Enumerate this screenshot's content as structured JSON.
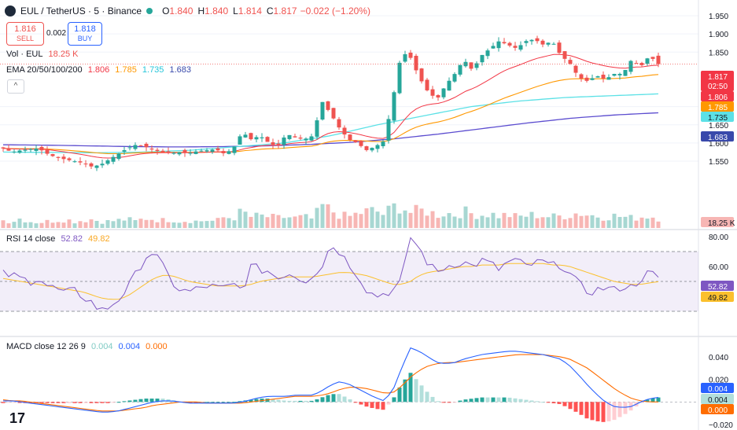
{
  "header": {
    "symbol": "EUL / TetherUS · 5 · Binance",
    "o_label": "O",
    "o": "1.840",
    "h_label": "H",
    "h": "1.840",
    "l_label": "L",
    "l": "1.814",
    "c_label": "C",
    "c": "1.817",
    "change": "−0.022 (−1.20%)"
  },
  "trade": {
    "sell_price": "1.816",
    "sell_label": "SELL",
    "spread": "0.002",
    "buy_price": "1.818",
    "buy_label": "BUY"
  },
  "volume_legend": {
    "label": "Vol · EUL",
    "value": "18.25 K"
  },
  "ema_legend": {
    "label": "EMA 20/50/100/200",
    "v20": "1.806",
    "v50": "1.785",
    "v100": "1.735",
    "v200": "1.683"
  },
  "rsi_legend": {
    "label": "RSI 14 close",
    "v1": "52.82",
    "v2": "49.82"
  },
  "macd_legend": {
    "label": "MACD close 12 26 9",
    "hist": "0.004",
    "macd": "0.004",
    "signal": "0.000"
  },
  "price_axis": {
    "ticks": [
      "1.950",
      "1.900",
      "1.850",
      "1.700",
      "1.650",
      "1.600",
      "1.550"
    ]
  },
  "rsi_axis": {
    "ticks": [
      "80.00",
      "60.00",
      "40.00"
    ]
  },
  "macd_axis": {
    "ticks": [
      "0.040",
      "0.020",
      "−0.020"
    ]
  },
  "badges": {
    "price": "1.817",
    "countdown": "02:50",
    "ema20": "1.806",
    "ema50": "1.785",
    "ema100": "1.735",
    "ema200": "1.683",
    "volume": "18.25 K",
    "rsi": "52.82",
    "rsi_ma": "49.82",
    "macd_hist": "0.004",
    "macd": "0.004",
    "signal": "0.000"
  },
  "colors": {
    "up": "#26a69a",
    "down": "#ef5350",
    "ema20": "#f23645",
    "ema50": "#ff9800",
    "ema100": "#5ce1e6",
    "ema200": "#5b4ccf",
    "rsi": "#7e57c2",
    "rsi_ma": "#fbc02d",
    "macd": "#2962ff",
    "signal": "#ff6d00"
  },
  "chart_data": [
    {
      "type": "candlestick",
      "title": "EUL / TetherUS · 5 · Binance",
      "ylim": [
        1.52,
        1.96
      ],
      "ohlc_anchors": [
        {
          "o": 1.58,
          "c": 1.585
        },
        {
          "o": 1.585,
          "c": 1.575
        },
        {
          "o": 1.578,
          "c": 1.58
        },
        {
          "o": 1.58,
          "c": 1.583
        },
        {
          "o": 1.583,
          "c": 1.585
        },
        {
          "o": 1.585,
          "c": 1.57
        },
        {
          "o": 1.57,
          "c": 1.56
        },
        {
          "o": 1.56,
          "c": 1.555
        },
        {
          "o": 1.555,
          "c": 1.55
        },
        {
          "o": 1.55,
          "c": 1.545
        },
        {
          "o": 1.545,
          "c": 1.535
        },
        {
          "o": 1.535,
          "c": 1.54
        },
        {
          "o": 1.54,
          "c": 1.555
        },
        {
          "o": 1.555,
          "c": 1.57
        },
        {
          "o": 1.57,
          "c": 1.585
        },
        {
          "o": 1.585,
          "c": 1.595
        },
        {
          "o": 1.595,
          "c": 1.59
        },
        {
          "o": 1.59,
          "c": 1.58
        },
        {
          "o": 1.58,
          "c": 1.575
        },
        {
          "o": 1.575,
          "c": 1.572
        },
        {
          "o": 1.572,
          "c": 1.575
        },
        {
          "o": 1.575,
          "c": 1.572
        },
        {
          "o": 1.572,
          "c": 1.578
        },
        {
          "o": 1.578,
          "c": 1.58
        },
        {
          "o": 1.58,
          "c": 1.583
        },
        {
          "o": 1.583,
          "c": 1.57
        },
        {
          "o": 1.57,
          "c": 1.585
        },
        {
          "o": 1.585,
          "c": 1.63
        },
        {
          "o": 1.63,
          "c": 1.61
        },
        {
          "o": 1.61,
          "c": 1.62
        },
        {
          "o": 1.62,
          "c": 1.6
        },
        {
          "o": 1.6,
          "c": 1.59
        },
        {
          "o": 1.59,
          "c": 1.625
        },
        {
          "o": 1.625,
          "c": 1.615
        },
        {
          "o": 1.615,
          "c": 1.61
        },
        {
          "o": 1.61,
          "c": 1.62
        },
        {
          "o": 1.62,
          "c": 1.715
        },
        {
          "o": 1.715,
          "c": 1.68
        },
        {
          "o": 1.68,
          "c": 1.64
        },
        {
          "o": 1.64,
          "c": 1.61
        },
        {
          "o": 1.61,
          "c": 1.6
        },
        {
          "o": 1.6,
          "c": 1.58
        },
        {
          "o": 1.58,
          "c": 1.59
        },
        {
          "o": 1.59,
          "c": 1.605
        },
        {
          "o": 1.605,
          "c": 1.72
        },
        {
          "o": 1.72,
          "c": 1.85
        },
        {
          "o": 1.85,
          "c": 1.835
        },
        {
          "o": 1.835,
          "c": 1.78
        },
        {
          "o": 1.78,
          "c": 1.74
        },
        {
          "o": 1.74,
          "c": 1.72
        },
        {
          "o": 1.72,
          "c": 1.76
        },
        {
          "o": 1.76,
          "c": 1.79
        },
        {
          "o": 1.79,
          "c": 1.83
        },
        {
          "o": 1.83,
          "c": 1.8
        },
        {
          "o": 1.8,
          "c": 1.84
        },
        {
          "o": 1.84,
          "c": 1.86
        },
        {
          "o": 1.86,
          "c": 1.88
        },
        {
          "o": 1.88,
          "c": 1.87
        },
        {
          "o": 1.87,
          "c": 1.86
        },
        {
          "o": 1.86,
          "c": 1.88
        },
        {
          "o": 1.88,
          "c": 1.885
        },
        {
          "o": 1.885,
          "c": 1.87
        },
        {
          "o": 1.87,
          "c": 1.88
        },
        {
          "o": 1.88,
          "c": 1.84
        },
        {
          "o": 1.84,
          "c": 1.82
        },
        {
          "o": 1.82,
          "c": 1.78
        },
        {
          "o": 1.78,
          "c": 1.77
        },
        {
          "o": 1.77,
          "c": 1.785
        },
        {
          "o": 1.785,
          "c": 1.775
        },
        {
          "o": 1.775,
          "c": 1.79
        },
        {
          "o": 1.79,
          "c": 1.79
        },
        {
          "o": 1.79,
          "c": 1.83
        },
        {
          "o": 1.83,
          "c": 1.81
        },
        {
          "o": 1.81,
          "c": 1.84
        },
        {
          "o": 1.84,
          "c": 1.817
        }
      ]
    },
    {
      "type": "bar",
      "title": "Vol · EUL",
      "anchors": [
        0.35,
        0.3,
        0.45,
        0.3,
        0.25,
        0.3,
        0.35,
        0.4,
        0.3,
        0.35,
        0.4,
        0.3,
        0.3,
        0.35,
        0.4,
        0.3,
        0.45,
        0.4,
        0.35,
        0.4,
        0.3,
        0.35,
        0.3,
        0.35,
        0.3,
        0.5,
        0.45,
        0.75,
        0.5,
        0.55,
        0.5,
        0.45,
        0.5,
        0.45,
        0.5,
        0.4,
        1.0,
        0.8,
        0.6,
        0.5,
        0.65,
        0.75,
        0.8,
        0.6,
        0.95,
        1.0,
        0.7,
        0.8,
        0.75,
        0.6,
        0.7,
        0.6,
        0.75,
        0.65,
        0.6,
        0.65,
        0.55,
        0.6,
        0.5,
        0.55,
        0.6,
        0.55,
        0.5,
        0.55,
        0.6,
        0.7,
        0.6,
        0.55,
        0.5,
        0.55,
        0.5,
        0.45,
        0.5,
        0.55,
        0.45
      ]
    },
    {
      "type": "line",
      "title": "RSI 14 close",
      "ylim": [
        25,
        82
      ],
      "rsi_anchors": [
        55,
        54,
        52,
        50,
        53,
        47,
        45,
        42,
        44,
        40,
        36,
        30,
        33,
        38,
        45,
        55,
        66,
        70,
        60,
        50,
        44,
        43,
        45,
        47,
        46,
        45,
        48,
        44,
        60,
        58,
        57,
        52,
        56,
        54,
        50,
        55,
        60,
        75,
        70,
        62,
        55,
        45,
        40,
        42,
        44,
        50,
        80,
        72,
        62,
        56,
        60,
        62,
        63,
        60,
        64,
        62,
        58,
        63,
        64,
        60,
        62,
        63,
        60,
        62,
        55,
        48,
        43,
        44,
        46,
        44,
        47,
        46,
        52,
        56,
        52.8
      ],
      "ma_anchors": [
        52,
        51,
        50,
        49,
        48,
        47,
        46,
        45,
        44,
        43,
        41,
        39,
        38,
        38,
        40,
        44,
        48,
        52,
        54,
        54,
        52,
        50,
        49,
        48,
        47,
        47,
        47,
        47,
        48,
        50,
        51,
        52,
        53,
        53,
        53,
        53,
        54,
        55,
        56,
        56,
        55,
        54,
        52,
        50,
        48,
        48,
        50,
        54,
        56,
        57,
        58,
        59,
        60,
        60,
        61,
        61,
        61,
        62,
        62,
        62,
        62,
        62,
        61,
        61,
        60,
        58,
        56,
        54,
        52,
        50,
        49,
        48,
        48,
        49,
        49.8
      ]
    },
    {
      "type": "line",
      "title": "MACD close 12 26 9",
      "ylim": [
        -0.022,
        0.05
      ],
      "macd_anchors": [
        0.001,
        0.001,
        0.0,
        -0.001,
        -0.002,
        -0.003,
        -0.004,
        -0.005,
        -0.006,
        -0.007,
        -0.008,
        -0.009,
        -0.009,
        -0.008,
        -0.006,
        -0.004,
        -0.002,
        0.0,
        0.001,
        0.001,
        0.0,
        -0.001,
        -0.001,
        -0.001,
        -0.001,
        -0.001,
        -0.001,
        0.0,
        0.002,
        0.004,
        0.005,
        0.005,
        0.005,
        0.006,
        0.006,
        0.006,
        0.01,
        0.015,
        0.018,
        0.016,
        0.012,
        0.008,
        0.004,
        0.001,
        0.01,
        0.03,
        0.048,
        0.045,
        0.04,
        0.035,
        0.034,
        0.035,
        0.038,
        0.04,
        0.042,
        0.043,
        0.044,
        0.045,
        0.045,
        0.044,
        0.043,
        0.042,
        0.04,
        0.038,
        0.032,
        0.024,
        0.015,
        0.007,
        0.0,
        -0.004,
        -0.005,
        -0.004,
        0.0,
        0.003,
        0.004
      ],
      "signal_anchors": [
        0.002,
        0.001,
        0.001,
        0.0,
        -0.001,
        -0.002,
        -0.003,
        -0.004,
        -0.005,
        -0.006,
        -0.007,
        -0.008,
        -0.008,
        -0.008,
        -0.007,
        -0.006,
        -0.005,
        -0.003,
        -0.002,
        -0.001,
        0.0,
        0.0,
        0.0,
        -0.001,
        -0.001,
        -0.001,
        -0.001,
        -0.001,
        0.0,
        0.001,
        0.002,
        0.003,
        0.004,
        0.005,
        0.005,
        0.005,
        0.006,
        0.008,
        0.011,
        0.013,
        0.013,
        0.012,
        0.01,
        0.008,
        0.008,
        0.014,
        0.022,
        0.028,
        0.032,
        0.034,
        0.035,
        0.035,
        0.036,
        0.037,
        0.038,
        0.039,
        0.04,
        0.041,
        0.042,
        0.042,
        0.042,
        0.042,
        0.041,
        0.04,
        0.038,
        0.034,
        0.03,
        0.024,
        0.018,
        0.012,
        0.007,
        0.003,
        0.001,
        0.0,
        0.0
      ]
    }
  ]
}
